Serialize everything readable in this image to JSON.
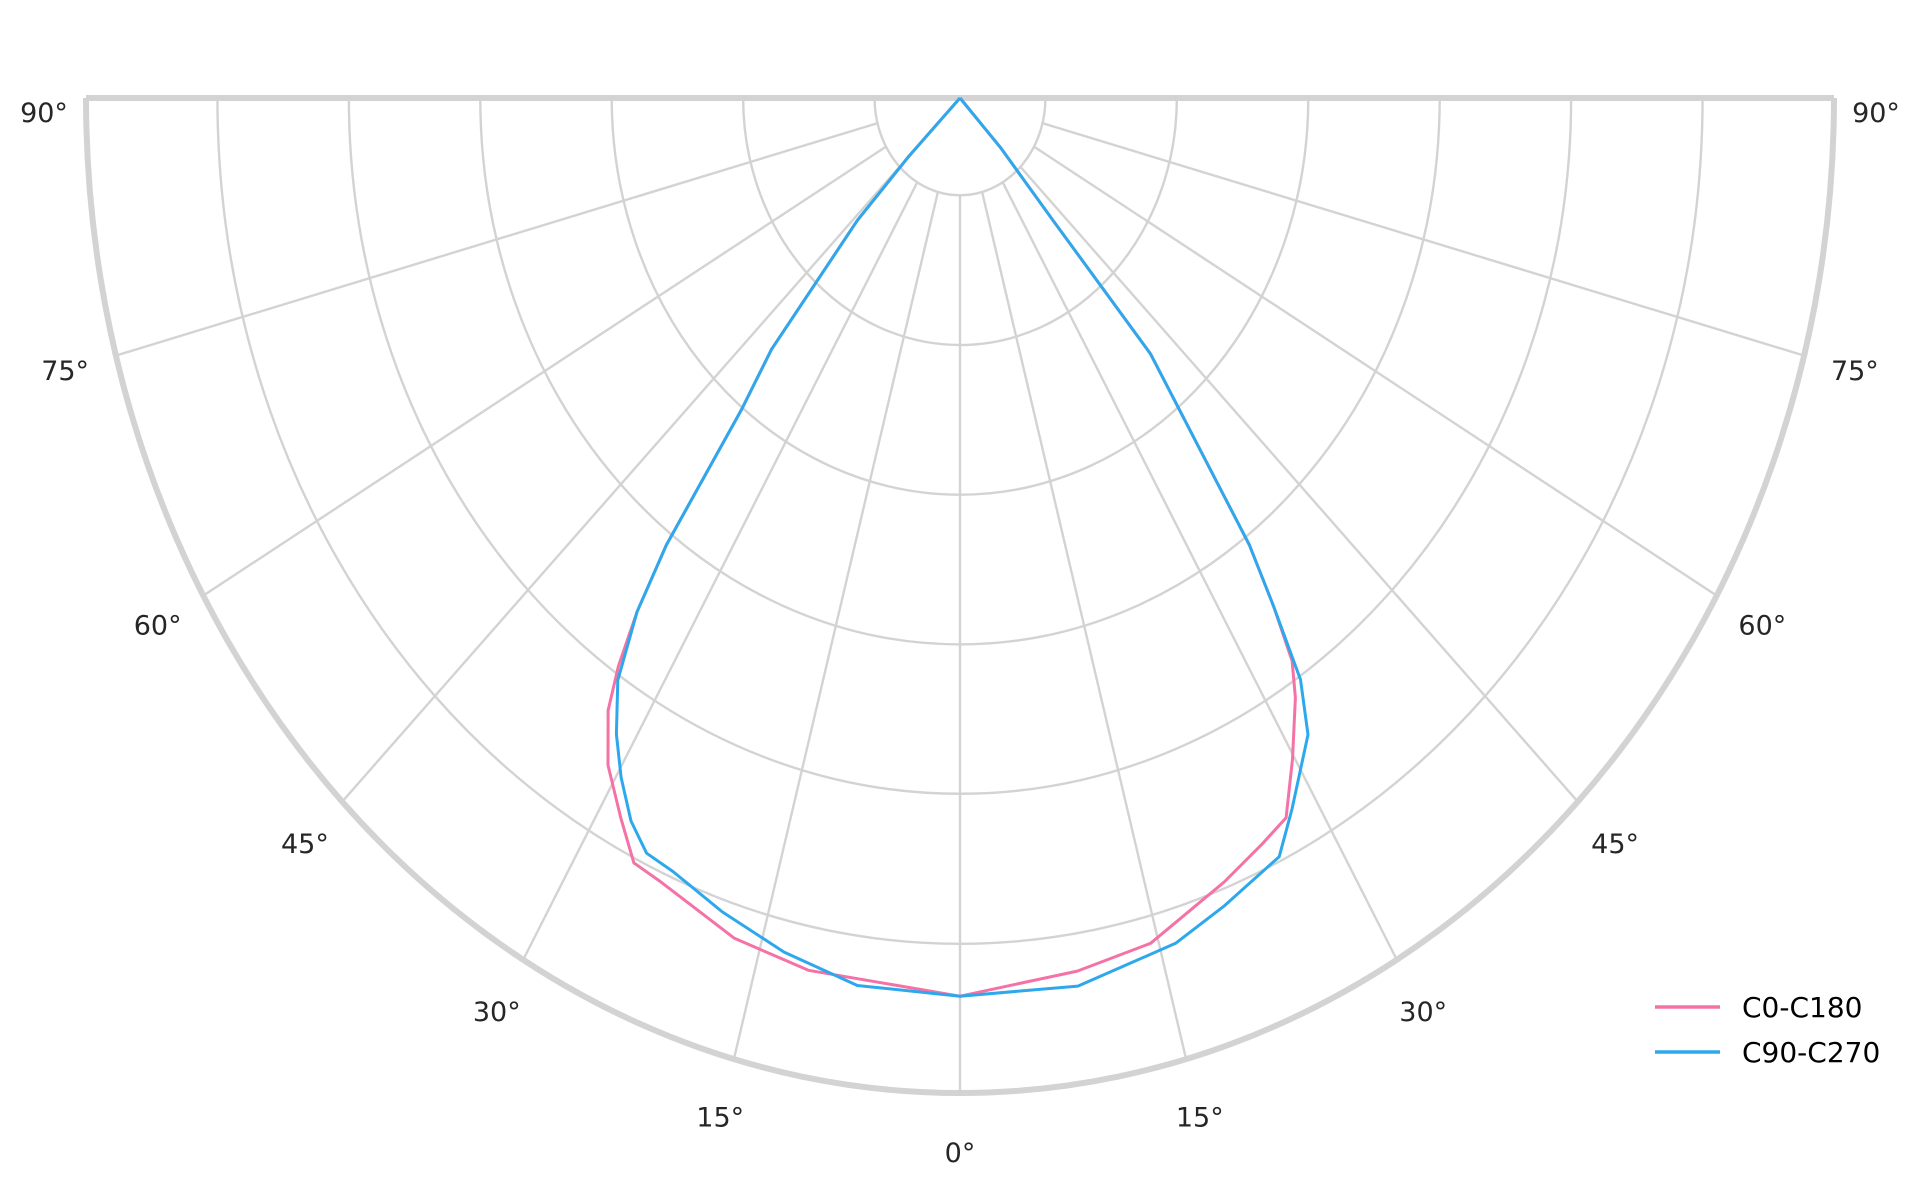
{
  "chart_data": {
    "type": "polar-line",
    "title": "",
    "angle_unit": "degrees",
    "angle_ticks": [
      "90°",
      "75°",
      "60°",
      "45°",
      "30°",
      "15°",
      "0°",
      "15°",
      "30°",
      "45°",
      "60°",
      "75°",
      "90°"
    ],
    "angle_tick_values": [
      -90,
      -75,
      -60,
      -45,
      -30,
      -15,
      0,
      15,
      30,
      45,
      60,
      75,
      90
    ],
    "radial_grid": [
      1,
      2,
      3,
      4,
      5,
      6,
      7
    ],
    "rlim": [
      0.35,
      7
    ],
    "radial_tick_labels": false,
    "grid": true,
    "legend_placement": "bottom-right",
    "series": [
      {
        "name": "C0-C180",
        "color": "#f472a6",
        "left": [
          [
            0,
            6.35
          ],
          [
            11.2,
            6.29
          ],
          [
            17,
            6.22
          ],
          [
            23.5,
            6.06
          ],
          [
            25.9,
            6.03
          ],
          [
            28.2,
            5.81
          ],
          [
            31,
            5.55
          ],
          [
            33.2,
            5.24
          ],
          [
            34.4,
            4.95
          ],
          [
            35.6,
            4.57
          ],
          [
            36.8,
            4.08
          ],
          [
            38.6,
            3.02
          ],
          [
            40.5,
            2.56
          ],
          [
            43.7,
            1.48
          ],
          [
            45,
            0.9
          ],
          [
            46,
            0.35
          ],
          [
            90,
            0.35
          ]
        ],
        "right": [
          [
            0,
            6.35
          ],
          [
            8.7,
            6.25
          ],
          [
            14.4,
            6.18
          ],
          [
            21,
            5.96
          ],
          [
            24.7,
            5.84
          ],
          [
            27.3,
            5.76
          ],
          [
            29.8,
            5.44
          ],
          [
            32.5,
            5.1
          ],
          [
            33.9,
            4.88
          ],
          [
            35.1,
            4.5
          ],
          [
            36.4,
            4.06
          ],
          [
            40.3,
            2.59
          ],
          [
            40.9,
            1.43
          ],
          [
            43,
            0.8
          ],
          [
            46,
            0.35
          ],
          [
            90,
            0.35
          ]
        ]
      },
      {
        "name": "C90-C270",
        "color": "#2ea8ec",
        "left": [
          [
            0,
            6.35
          ],
          [
            7.5,
            6.33
          ],
          [
            13.2,
            6.21
          ],
          [
            18.4,
            6.08
          ],
          [
            22.9,
            5.96
          ],
          [
            25.3,
            5.93
          ],
          [
            27.4,
            5.79
          ],
          [
            29.6,
            5.57
          ],
          [
            31.6,
            5.34
          ],
          [
            33.8,
            5.03
          ],
          [
            35.6,
            4.57
          ],
          [
            36.8,
            4.08
          ],
          [
            38.6,
            3.02
          ],
          [
            40.5,
            2.56
          ],
          [
            43.7,
            1.48
          ],
          [
            45,
            0.9
          ],
          [
            46,
            0.35
          ],
          [
            90,
            0.35
          ]
        ],
        "right": [
          [
            0,
            6.35
          ],
          [
            8.6,
            6.35
          ],
          [
            16.2,
            6.23
          ],
          [
            20.4,
            6.11
          ],
          [
            23.9,
            6.01
          ],
          [
            25.6,
            5.97
          ],
          [
            28,
            5.73
          ],
          [
            31.9,
            5.36
          ],
          [
            33.7,
            5.02
          ],
          [
            35.1,
            4.5
          ],
          [
            36.4,
            4.06
          ],
          [
            40.3,
            2.59
          ],
          [
            40.9,
            1.43
          ],
          [
            43,
            0.8
          ],
          [
            46,
            0.35
          ],
          [
            90,
            0.35
          ]
        ]
      }
    ]
  }
}
